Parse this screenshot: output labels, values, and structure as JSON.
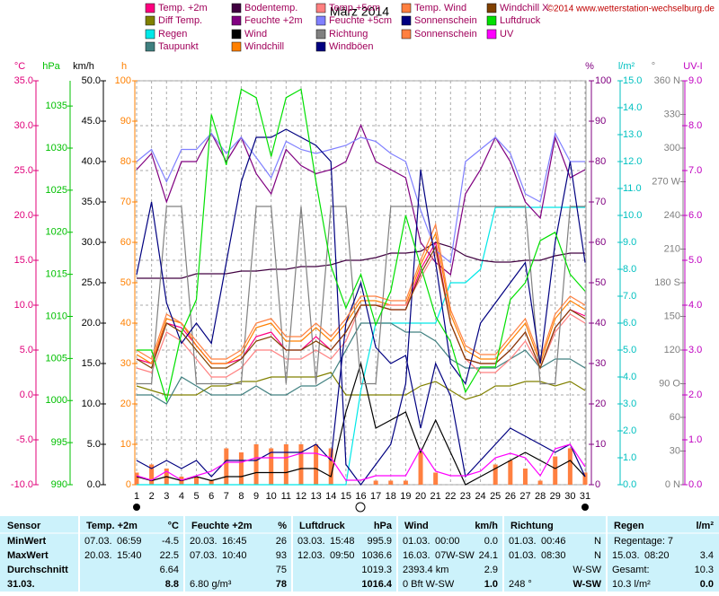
{
  "chart_data": {
    "type": "line",
    "title": "März 2014",
    "copyright": "©2014 www.wetterstation-wechselburg.de",
    "categories": [
      1,
      2,
      3,
      4,
      5,
      6,
      7,
      8,
      9,
      10,
      11,
      12,
      13,
      14,
      15,
      16,
      17,
      18,
      19,
      20,
      21,
      22,
      23,
      24,
      25,
      26,
      27,
      28,
      29,
      30,
      31
    ],
    "grid": true,
    "axes": {
      "temp": {
        "label": "°C",
        "color": "#e0007a",
        "lim": [
          -10,
          35
        ],
        "ticks": [
          {
            "value": 35,
            "label": "35.0"
          },
          {
            "value": 30,
            "label": "30.0"
          },
          {
            "value": 25,
            "label": "25.0"
          },
          {
            "value": 20,
            "label": "20.0"
          },
          {
            "value": 15,
            "label": "15.0"
          },
          {
            "value": 10,
            "label": "10.0"
          },
          {
            "value": 5,
            "label": "5.0"
          },
          {
            "value": 0,
            "label": "0.0"
          },
          {
            "value": -5,
            "label": "-5.0"
          },
          {
            "value": -10,
            "label": "-10.0"
          }
        ]
      },
      "hpa": {
        "label": "hPa",
        "color": "#00c000",
        "lim": [
          990,
          1038
        ],
        "ticks": [
          1035,
          1030,
          1025,
          1020,
          1015,
          1010,
          1005,
          1000,
          995,
          990
        ]
      },
      "kmh": {
        "label": "km/h",
        "color": "#000000",
        "lim": [
          0,
          50
        ],
        "ticks": [
          {
            "value": 50,
            "label": "50.0"
          },
          {
            "value": 45,
            "label": "45.0"
          },
          {
            "value": 40,
            "label": "40.0"
          },
          {
            "value": 35,
            "label": "35.0"
          },
          {
            "value": 30,
            "label": "30.0"
          },
          {
            "value": 25,
            "label": "25.0"
          },
          {
            "value": 20,
            "label": "20.0"
          },
          {
            "value": 15,
            "label": "15.0"
          },
          {
            "value": 10,
            "label": "10.0"
          },
          {
            "value": 5,
            "label": "5.0"
          },
          {
            "value": 0,
            "label": "0.0"
          }
        ]
      },
      "h": {
        "label": "h",
        "color": "#ff8000",
        "lim": [
          0,
          100
        ],
        "ticks": [
          100,
          90,
          80,
          70,
          60,
          50,
          40,
          30,
          20,
          10,
          0
        ]
      },
      "pct": {
        "label": "%",
        "color": "#800080",
        "lim": [
          0,
          100
        ],
        "ticks": [
          100,
          90,
          80,
          70,
          60,
          50,
          40,
          30,
          20,
          10,
          0
        ]
      },
      "rain": {
        "label": "l/m²",
        "color": "#00c0c0",
        "lim": [
          0,
          15
        ],
        "ticks": [
          {
            "value": 15,
            "label": "15.0"
          },
          {
            "value": 14,
            "label": "14.0"
          },
          {
            "value": 13,
            "label": "13.0"
          },
          {
            "value": 12,
            "label": "12.0"
          },
          {
            "value": 11,
            "label": "11.0"
          },
          {
            "value": 10,
            "label": "10.0"
          },
          {
            "value": 9,
            "label": "9.0"
          },
          {
            "value": 8,
            "label": "8.0"
          },
          {
            "value": 7,
            "label": "7.0"
          },
          {
            "value": 6,
            "label": "6.0"
          },
          {
            "value": 5,
            "label": "5.0"
          },
          {
            "value": 4,
            "label": "4.0"
          },
          {
            "value": 3,
            "label": "3.0"
          },
          {
            "value": 2,
            "label": "2.0"
          },
          {
            "value": 1,
            "label": "1.0"
          },
          {
            "value": 0,
            "label": "0.0"
          }
        ]
      },
      "deg": {
        "label": "°",
        "color": "#808080",
        "lim": [
          0,
          360
        ],
        "ticks": [
          {
            "value": 360,
            "label": "360 N"
          },
          330,
          300,
          {
            "value": 270,
            "label": "270 W"
          },
          240,
          210,
          {
            "value": 180,
            "label": "180 S"
          },
          150,
          120,
          {
            "value": 90,
            "label": "90 O"
          },
          60,
          30,
          {
            "value": 0,
            "label": "0 N"
          }
        ]
      },
      "uv": {
        "label": "UV-I",
        "color": "#c000c0",
        "lim": [
          0,
          9
        ],
        "ticks": [
          {
            "value": 9,
            "label": "9.0"
          },
          {
            "value": 8,
            "label": "8.0"
          },
          {
            "value": 7,
            "label": "7.0"
          },
          {
            "value": 6,
            "label": "6.0"
          },
          {
            "value": 5,
            "label": "5.0"
          },
          {
            "value": 4,
            "label": "4.0"
          },
          {
            "value": 3,
            "label": "3.0"
          },
          {
            "value": 2,
            "label": "2.0"
          },
          {
            "value": 1,
            "label": "1.0"
          },
          {
            "value": 0,
            "label": "0.0"
          }
        ]
      }
    },
    "series": [
      {
        "name": "Temp. +2m",
        "color": "#ff0080",
        "axis": "temp",
        "values": [
          4,
          3.5,
          8,
          7.5,
          5.5,
          3.5,
          3.5,
          4,
          6.5,
          7,
          5,
          5,
          6.5,
          5,
          7,
          10,
          10,
          9.5,
          9.5,
          14,
          17,
          8,
          4,
          3.5,
          3.5,
          5,
          7,
          3,
          7.5,
          9.5,
          8.8
        ]
      },
      {
        "name": "Diff Temp.",
        "color": "#808000",
        "axis": "temp",
        "values": [
          1,
          0.5,
          0,
          0,
          0,
          1,
          1,
          1.5,
          1.5,
          2,
          2,
          2,
          2,
          2.5,
          0,
          0,
          0,
          0,
          0,
          1,
          1.5,
          0.5,
          -0.5,
          0,
          1,
          1,
          1.5,
          1.5,
          1,
          1.5,
          0.5
        ]
      },
      {
        "name": "Regen",
        "color": "#00e8e8",
        "axis": "rain",
        "values": [
          0,
          0,
          0,
          0,
          0,
          0,
          0,
          0,
          0,
          0,
          0,
          0,
          0,
          0,
          0,
          3.5,
          6,
          6,
          6,
          6,
          6,
          7.5,
          7.5,
          8,
          10.3,
          10.3,
          10.3,
          10.3,
          10.3,
          10.3,
          10.3
        ]
      },
      {
        "name": "Taupunkt",
        "color": "#408080",
        "axis": "temp",
        "values": [
          0,
          0,
          -1,
          2,
          1,
          0,
          0,
          0,
          1,
          0,
          0,
          1,
          1,
          2,
          5,
          8,
          8,
          8,
          7,
          7,
          6,
          4,
          3,
          3,
          3,
          4,
          5,
          3,
          4,
          4,
          3
        ]
      },
      {
        "name": "Bodentemp.",
        "color": "#400040",
        "axis": "temp",
        "values": [
          13,
          13,
          13,
          13,
          13.5,
          13.5,
          13.5,
          13.8,
          13.8,
          14,
          14,
          14.3,
          14.3,
          14.5,
          15,
          15,
          15.3,
          15.8,
          15.8,
          16,
          17,
          16.5,
          15.5,
          15,
          14.8,
          14.8,
          15,
          15,
          15.5,
          15.8,
          15.8
        ]
      },
      {
        "name": "Feuchte +2m",
        "color": "#800080",
        "axis": "pct",
        "values": [
          78,
          82,
          70,
          80,
          80,
          87,
          80,
          86,
          77,
          72,
          83,
          79,
          77,
          78,
          80,
          89,
          80,
          78,
          76,
          60,
          55,
          52,
          72,
          78,
          86,
          80,
          70,
          66,
          86,
          76,
          78
        ]
      },
      {
        "name": "Wind",
        "color": "#000000",
        "axis": "kmh",
        "values": [
          1,
          0.5,
          1,
          0.5,
          1,
          0.5,
          1,
          1,
          1.5,
          1.5,
          1.5,
          2,
          2,
          1,
          9,
          15,
          7,
          8,
          9,
          4,
          8,
          4,
          0,
          1,
          2,
          3,
          4,
          3,
          2,
          3,
          1
        ]
      },
      {
        "name": "Windchill",
        "color": "#ff8000",
        "axis": "temp",
        "values": [
          4.5,
          3.5,
          8.5,
          8,
          5.5,
          3.5,
          3.5,
          4.5,
          7.5,
          8,
          6,
          6,
          7.5,
          6,
          8,
          10.5,
          10.5,
          10,
          10,
          14.5,
          18,
          9,
          5,
          4,
          4,
          6,
          8,
          3.5,
          8.5,
          10.5,
          9.5
        ]
      },
      {
        "name": "Temp.+5cm",
        "color": "#ff8080",
        "axis": "temp",
        "values": [
          3,
          2.5,
          7,
          6,
          4,
          2,
          2,
          3,
          5,
          5,
          4,
          4,
          5,
          4,
          6,
          10,
          10,
          10,
          10,
          13,
          16,
          8,
          4,
          2.5,
          2.5,
          4,
          6,
          3,
          7,
          9,
          8
        ]
      },
      {
        "name": "Feuchte +5cm",
        "color": "#8080ff",
        "axis": "pct",
        "values": [
          80,
          83,
          75,
          83,
          83,
          87,
          82,
          86,
          81,
          76,
          85,
          83,
          82,
          83,
          84,
          86,
          85,
          82,
          80,
          68,
          58,
          55,
          80,
          83,
          86,
          82,
          72,
          70,
          87,
          80,
          80
        ]
      },
      {
        "name": "Richtung",
        "color": "#808080",
        "axis": "deg",
        "values": [
          90,
          90,
          248,
          248,
          90,
          90,
          90,
          90,
          248,
          248,
          90,
          248,
          90,
          248,
          248,
          90,
          90,
          248,
          248,
          248,
          248,
          248,
          248,
          248,
          248,
          248,
          248,
          90,
          90,
          248,
          248
        ]
      },
      {
        "name": "Windböen",
        "color": "#000080",
        "axis": "kmh",
        "values": [
          3,
          2,
          3,
          2,
          3,
          1,
          3,
          3,
          3,
          4,
          4,
          4,
          5,
          3,
          20,
          25,
          17,
          15,
          16,
          7,
          15,
          11,
          1,
          3,
          5,
          7,
          6,
          5,
          4,
          5,
          1
        ]
      },
      {
        "name": "Temp. Wind",
        "color": "#ff8040",
        "axis": "temp",
        "values": [
          5,
          4,
          9,
          8,
          6,
          4,
          4,
          5,
          8,
          8.5,
          6.5,
          6.5,
          8,
          6.5,
          8.5,
          11,
          11,
          10.5,
          10.5,
          15,
          19,
          9.5,
          5.5,
          4.5,
          4.5,
          6.5,
          8.5,
          4,
          9,
          11,
          10
        ]
      },
      {
        "name": "Sonnenschein",
        "color": "#000080",
        "axis": "h",
        "values": [
          52,
          70,
          45,
          35,
          40,
          35,
          55,
          75,
          86,
          86,
          88,
          86,
          84,
          80,
          5,
          0,
          5,
          10,
          25,
          78,
          55,
          30,
          25,
          40,
          45,
          50,
          55,
          30,
          60,
          80,
          55
        ]
      },
      {
        "name": "Sonnenschein",
        "color": "#ff8040",
        "axis": "h",
        "style": "bar",
        "values": [
          3,
          5,
          4,
          2,
          2,
          1,
          9,
          8,
          10,
          9,
          10,
          10,
          10,
          9,
          0,
          0,
          1,
          1,
          1,
          8,
          3,
          0,
          0,
          0,
          5,
          6,
          4,
          1,
          7,
          9,
          3
        ]
      },
      {
        "name": "Windchill X",
        "color": "#804000",
        "axis": "temp",
        "values": [
          4,
          3,
          8,
          7,
          5,
          3,
          3,
          4,
          6,
          6.5,
          5,
          5,
          6,
          5,
          7,
          10,
          10,
          9.5,
          9.5,
          13.5,
          16.5,
          8,
          4,
          3.5,
          3.5,
          5,
          7,
          3,
          7.5,
          9.5,
          8.5
        ]
      },
      {
        "name": "Luftdruck",
        "color": "#00e000",
        "axis": "hpa",
        "values": [
          1006,
          1006,
          1000,
          1008,
          1012,
          1034,
          1028,
          1037,
          1036,
          1029,
          1036,
          1037,
          1026,
          1016,
          1011,
          1015,
          1009,
          1013,
          1022,
          1016,
          1010,
          1007,
          1001,
          1004,
          1004,
          1012,
          1014,
          1019,
          1020,
          1015,
          1013
        ]
      },
      {
        "name": "UV",
        "color": "#ff00ff",
        "axis": "uv",
        "values": [
          0.2,
          0.1,
          0.3,
          0.1,
          0.2,
          0.3,
          0.5,
          0.5,
          0.6,
          0.6,
          0.6,
          0.7,
          0.7,
          0.6,
          0.1,
          0.1,
          0.2,
          0.2,
          0.2,
          0.8,
          0.3,
          0.2,
          0.2,
          0.3,
          0.6,
          0.7,
          0.6,
          0.2,
          0.8,
          0.9,
          0.4
        ]
      }
    ]
  },
  "table": {
    "header": [
      [
        "Sensor"
      ],
      [
        "Temp. +2m",
        "°C"
      ],
      [
        "Feuchte +2m",
        "%"
      ],
      [
        "Luftdruck",
        "hPa"
      ],
      [
        "Wind",
        "km/h"
      ],
      [
        "Richtung"
      ],
      [
        "Regen",
        "l/m²"
      ]
    ],
    "rows": [
      {
        "label": "MinWert",
        "cells": [
          [
            "07.03.",
            "06:59",
            "-4.5"
          ],
          [
            "20.03.",
            "16:45",
            "26"
          ],
          [
            "03.03.",
            "15:48",
            "995.9"
          ],
          [
            "01.03.",
            "00:00",
            "0.0"
          ],
          [
            "01.03.",
            "00:46",
            "N"
          ],
          [
            "Regentage: 7"
          ]
        ]
      },
      {
        "label": "MaxWert",
        "cells": [
          [
            "20.03.",
            "15:40",
            "22.5"
          ],
          [
            "07.03.",
            "10:40",
            "93"
          ],
          [
            "12.03.",
            "09:50",
            "1036.6"
          ],
          [
            "16.03.",
            "07W-SW",
            "24.1"
          ],
          [
            "01.03.",
            "08:30",
            "N"
          ],
          [
            "15.03.",
            "08:20",
            "3.4"
          ]
        ]
      },
      {
        "label": "Durchschnitt",
        "cells": [
          [
            "6.64"
          ],
          [
            "75"
          ],
          [
            "1019.3"
          ],
          [
            "2393.4 km",
            "2.9"
          ],
          [
            "W-SW"
          ],
          [
            "Gesamt:",
            "10.3"
          ]
        ]
      },
      {
        "label": "31.03.",
        "cells": [
          [
            "8.8"
          ],
          [
            "6.80 g/m³",
            "78"
          ],
          [
            "1016.4"
          ],
          [
            "0 Bft W-SW",
            "1.0"
          ],
          [
            "248 °",
            "W-SW"
          ],
          [
            "10.3 l/m²",
            "0.0"
          ]
        ]
      }
    ]
  }
}
